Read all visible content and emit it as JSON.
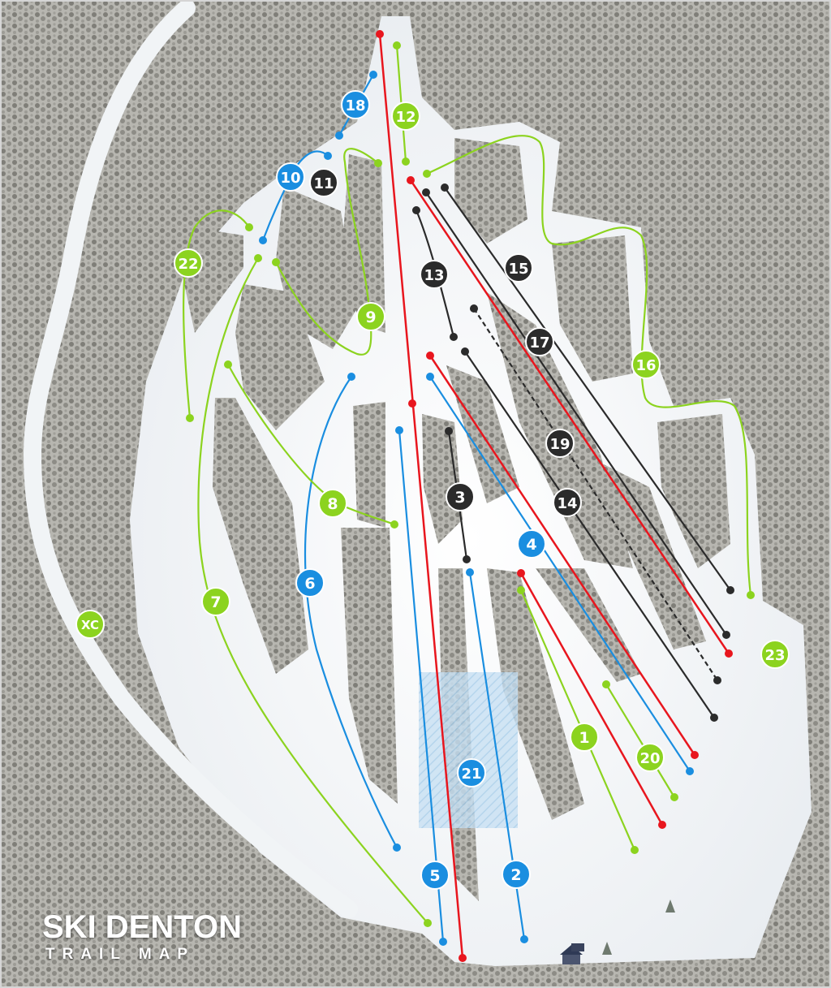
{
  "title": "SKI DENTON",
  "subtitle": "TRAIL MAP",
  "colors": {
    "green": "#8cd31f",
    "blue": "#1a8ee0",
    "black": "#2b2b2b",
    "red": "#e8161e",
    "snow": "#f4f6f8",
    "forest": "#8c8c86",
    "terrain_park": "#9cc8e8"
  },
  "trails": [
    {
      "id": "t1",
      "label": "1",
      "color": "green"
    },
    {
      "id": "t2",
      "label": "2",
      "color": "blue"
    },
    {
      "id": "t3",
      "label": "3",
      "color": "black"
    },
    {
      "id": "t4",
      "label": "4",
      "color": "blue"
    },
    {
      "id": "t5",
      "label": "5",
      "color": "blue"
    },
    {
      "id": "t6",
      "label": "6",
      "color": "blue"
    },
    {
      "id": "t7",
      "label": "7",
      "color": "green"
    },
    {
      "id": "t8",
      "label": "8",
      "color": "green"
    },
    {
      "id": "t9",
      "label": "9",
      "color": "green"
    },
    {
      "id": "t10",
      "label": "10",
      "color": "blue"
    },
    {
      "id": "t11",
      "label": "11",
      "color": "black"
    },
    {
      "id": "t12",
      "label": "12",
      "color": "green"
    },
    {
      "id": "t13",
      "label": "13",
      "color": "black"
    },
    {
      "id": "t14",
      "label": "14",
      "color": "black"
    },
    {
      "id": "t15",
      "label": "15",
      "color": "black"
    },
    {
      "id": "t16",
      "label": "16",
      "color": "green"
    },
    {
      "id": "t17",
      "label": "17",
      "color": "black"
    },
    {
      "id": "t18",
      "label": "18",
      "color": "blue"
    },
    {
      "id": "t19",
      "label": "19",
      "color": "black"
    },
    {
      "id": "t20",
      "label": "20",
      "color": "green"
    },
    {
      "id": "t21",
      "label": "21",
      "color": "blue"
    },
    {
      "id": "t22",
      "label": "22",
      "color": "green"
    },
    {
      "id": "t23",
      "label": "23",
      "color": "green"
    },
    {
      "id": "xc",
      "label": "XC",
      "color": "green"
    }
  ],
  "lifts": [
    {
      "id": "lift-main",
      "color": "red"
    },
    {
      "id": "lift-a",
      "color": "red"
    },
    {
      "id": "lift-b",
      "color": "red"
    },
    {
      "id": "lift-c",
      "color": "red"
    }
  ],
  "icons": [
    "lodge-icon",
    "tree-icon"
  ]
}
